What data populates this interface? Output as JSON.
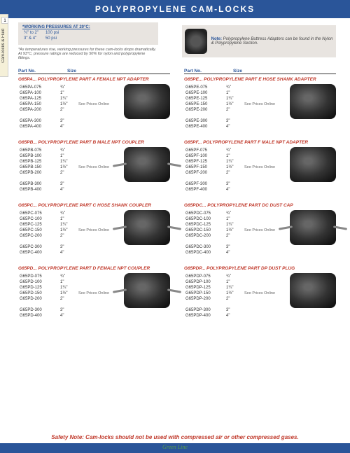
{
  "header_title": "POLYPROPYLENE CAM-LOCKS",
  "side_tab": "Cam-locks & Fluid",
  "tab_number": "1",
  "pressure": {
    "title": "*WORKING PRESSURES AT 20°C:",
    "rows": [
      [
        "¾\" to 2\"",
        "100 psi"
      ],
      [
        "3\" & 4\"",
        "50 psi"
      ]
    ]
  },
  "pressure_note": "*As temperatures rise, working pressures for these cam-locks drops dramatically. At 93°C, pressure ratings are reduced by 50% for nylon and polypropylene fittings.",
  "note_box": {
    "label": "Note:",
    "text": "Polypropylene Buttress Adapters can be found in the Nylon & Polypropylene Section."
  },
  "col_head": {
    "part": "Part No.",
    "size": "Size"
  },
  "price_note": "See Prices Online",
  "left": [
    {
      "title": "G65PA... POLYPROPYLENE PART A FEMALE NPT ADAPTER",
      "prefix": "G65PA",
      "img": "plain"
    },
    {
      "title": "G65PB... POLYPROPYLENE PART B MALE NPT COUPLER",
      "prefix": "G65PB",
      "img": "coupler"
    },
    {
      "title": "G65PC... POLYPROPYLENE PART C HOSE SHANK COUPLER",
      "prefix": "G65PC",
      "img": "coupler"
    },
    {
      "title": "G65PD... POLYPROPYLENE PART D FEMALE NPT COUPLER",
      "prefix": "G65PD",
      "img": "coupler"
    }
  ],
  "right": [
    {
      "title": "G65PE... POLYPROPYLENE PART E HOSE SHANK ADAPTER",
      "prefix": "G65PE",
      "img": "plain"
    },
    {
      "title": "G65PF... POLYPROPYLENE PART F MALE NPT ADAPTER",
      "prefix": "G65PF",
      "img": "plain"
    },
    {
      "title": "G65PDC... POLYPROPYLENE PART DC DUST CAP",
      "prefix": "G65PDC",
      "img": "coupler"
    },
    {
      "title": "G65PDP... POLYPROPYLENE PART DP DUST PLUG",
      "prefix": "G65PDP",
      "img": "plain"
    }
  ],
  "sizes": [
    {
      "suf": "-075",
      "sz": "¾\""
    },
    {
      "suf": "-100",
      "sz": "1\""
    },
    {
      "suf": "-125",
      "sz": "1¼\""
    },
    {
      "suf": "-150",
      "sz": "1½\""
    },
    {
      "suf": "-200",
      "sz": "2\""
    },
    {
      "suf": "-300",
      "sz": "3\""
    },
    {
      "suf": "-400",
      "sz": "4\""
    }
  ],
  "safety": "Safety Note: Cam-locks should not be used with compressed air or other compressed gases.",
  "footer_brand": "Green Line",
  "page_number": "8"
}
